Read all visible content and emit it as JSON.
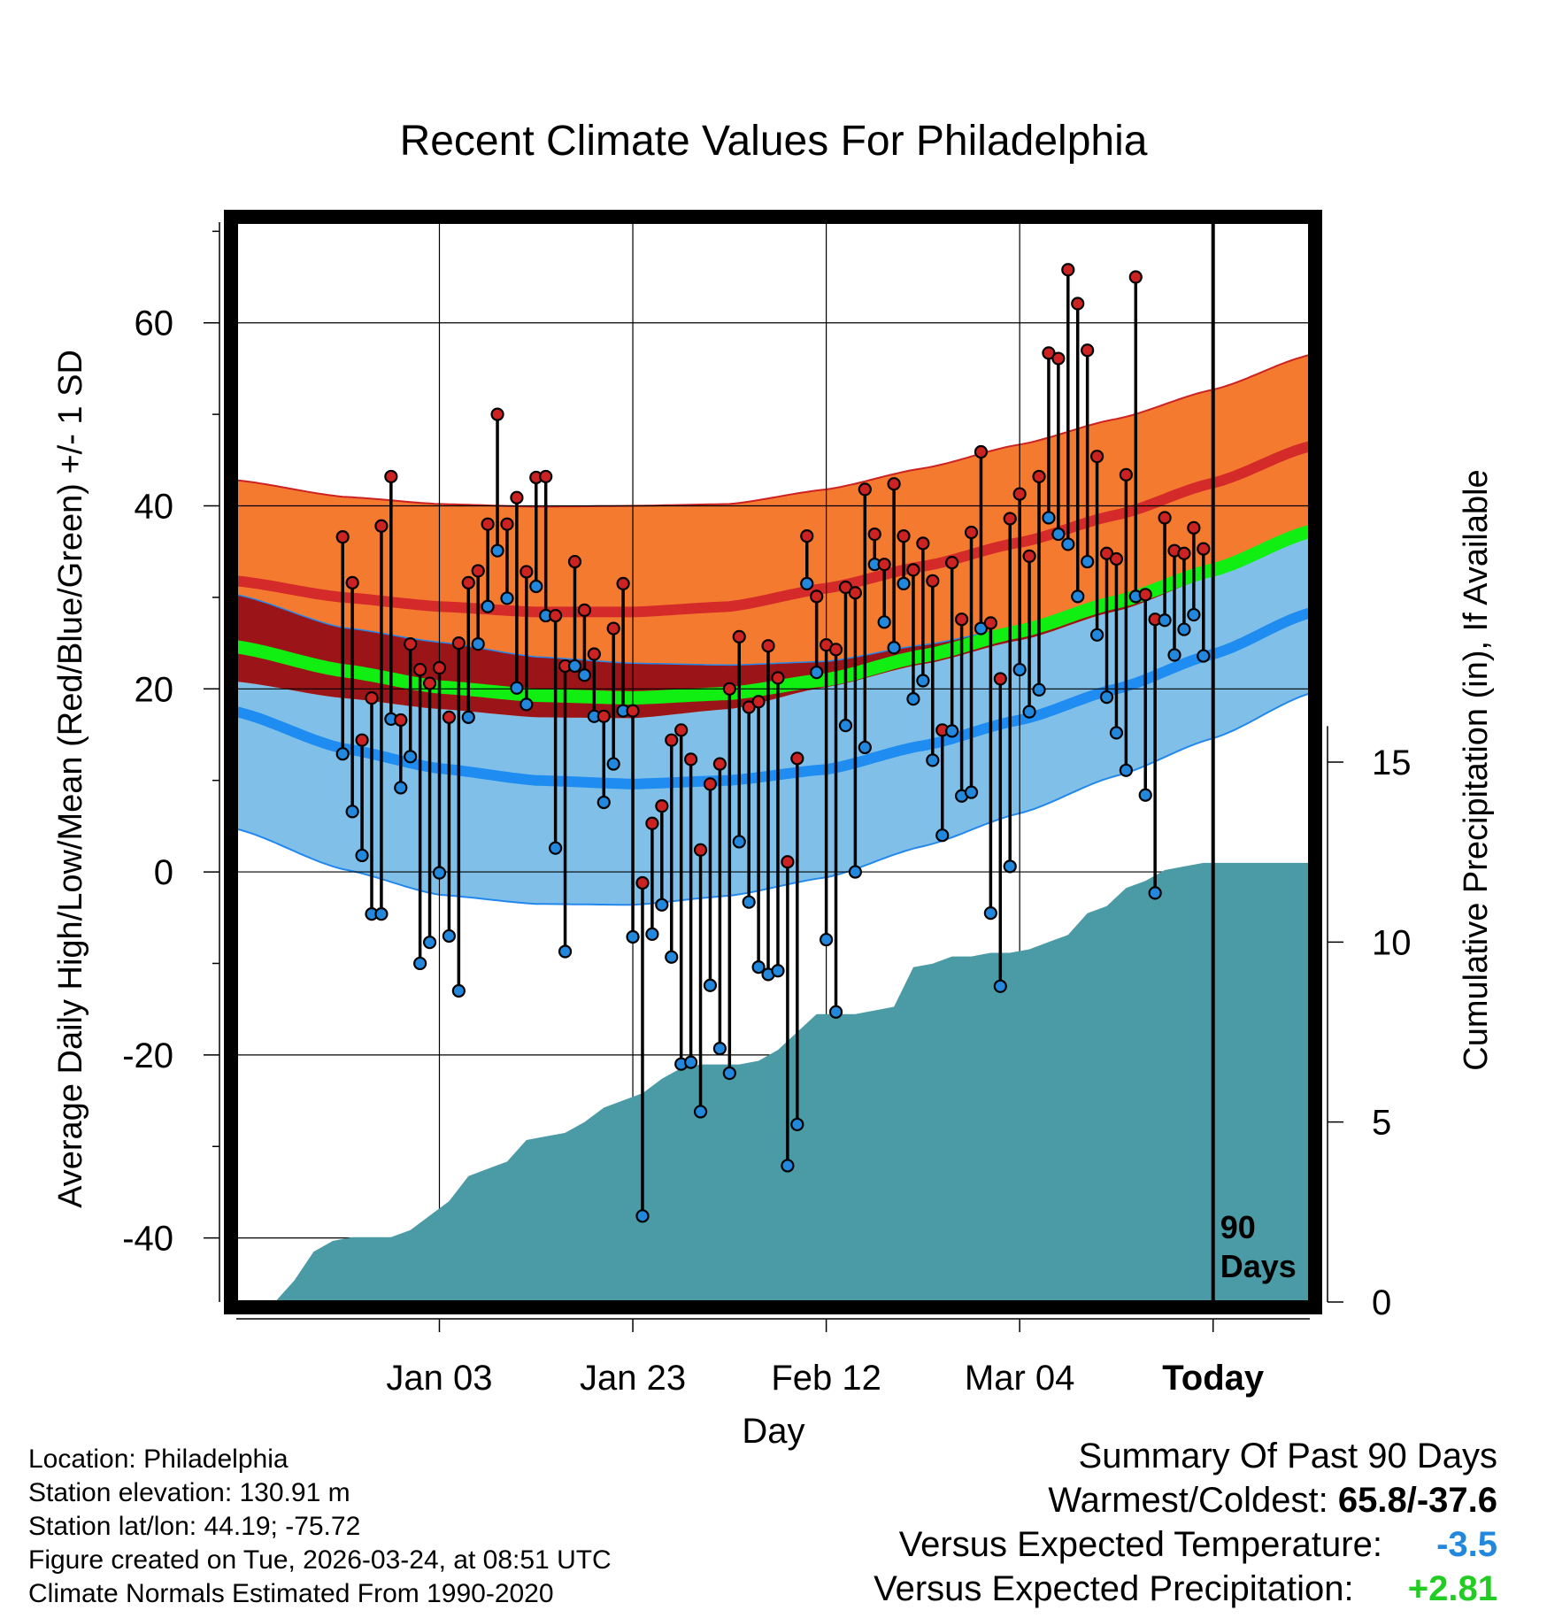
{
  "chart_data": {
    "type": "line",
    "title": "Recent Climate Values For Philadelphia",
    "xlabel": "Day",
    "ylabel": "Average Daily High/Low/Mean (Red/Blue/Green) +/- 1 SD",
    "y2label": "Cumulative Precipitation (in), If Available",
    "ylim": [
      -47,
      71
    ],
    "y2lim": [
      0,
      30
    ],
    "y_ticks": [
      -40,
      -20,
      0,
      20,
      40,
      60
    ],
    "y2_ticks": [
      0,
      5,
      10,
      15
    ],
    "x_range_days": [
      -101,
      10
    ],
    "x_ticks": [
      {
        "day": -80,
        "label": "Jan 03"
      },
      {
        "day": -60,
        "label": "Jan 23"
      },
      {
        "day": -40,
        "label": "Feb 12"
      },
      {
        "day": -20,
        "label": "Mar 04"
      },
      {
        "day": 0,
        "label": "Today"
      }
    ],
    "window_label": "90\nDays",
    "normals": {
      "days": [
        -101,
        -90,
        -80,
        -70,
        -60,
        -50,
        -40,
        -30,
        -20,
        -10,
        0,
        10
      ],
      "high_mean": [
        31.8,
        30.0,
        29.0,
        28.4,
        28.4,
        29.0,
        31.0,
        33.4,
        36.0,
        39.0,
        42.5,
        46.5
      ],
      "high_sd": [
        11.0,
        11.0,
        11.2,
        11.5,
        11.6,
        11.2,
        10.8,
        10.7,
        10.7,
        10.5,
        10.2,
        10.0
      ],
      "low_mean": [
        17.5,
        13.5,
        11.3,
        10.0,
        9.6,
        10.0,
        11.2,
        13.8,
        16.6,
        20.0,
        23.8,
        28.3
      ],
      "low_sd": [
        12.8,
        13.2,
        13.8,
        13.5,
        13.2,
        12.6,
        11.8,
        11.0,
        10.2,
        9.5,
        9.2,
        8.8
      ],
      "mean_mean": [
        24.6,
        22.0,
        20.2,
        19.3,
        19.0,
        19.5,
        21.0,
        23.6,
        26.3,
        29.5,
        33.0,
        37.2
      ]
    },
    "series": [
      {
        "name": "Daily High",
        "color": "#cc2222",
        "values": [
          36.6,
          31.6,
          14.4,
          19.0,
          37.8,
          43.2,
          16.6,
          24.9,
          22.1,
          20.6,
          22.3,
          16.9,
          25.0,
          31.6,
          32.9,
          38.0,
          50.0,
          38.0,
          40.9,
          32.8,
          43.1,
          43.2,
          28.0,
          22.5,
          33.9,
          28.6,
          23.8,
          17.0,
          26.6,
          31.5,
          17.6,
          -1.2,
          5.3,
          7.2,
          14.4,
          15.5,
          12.3,
          2.4,
          9.6,
          11.8,
          20.0,
          25.7,
          18.0,
          18.6,
          24.7,
          21.2,
          1.1,
          12.4,
          36.7,
          30.1,
          24.8,
          24.3,
          31.1,
          30.5,
          41.8,
          36.9,
          33.6,
          42.4,
          36.7,
          33.0,
          35.9,
          31.8,
          15.5,
          33.8,
          27.6,
          37.1,
          45.9,
          27.2,
          21.1,
          38.6,
          41.3,
          34.5,
          43.2,
          56.7,
          56.1,
          65.8,
          62.1,
          57.0,
          45.4,
          34.8,
          34.2,
          43.4,
          65.0,
          30.3,
          27.6,
          38.7,
          35.1,
          34.8,
          37.6,
          35.3
        ]
      },
      {
        "name": "Daily Low",
        "color": "#2288dd",
        "values": [
          12.9,
          6.6,
          1.8,
          -4.6,
          -4.6,
          16.7,
          9.2,
          12.6,
          -10.0,
          -7.7,
          -0.1,
          -7.0,
          -13.0,
          16.9,
          24.9,
          29.0,
          35.1,
          29.9,
          20.1,
          18.3,
          31.2,
          28.0,
          2.6,
          -8.7,
          22.5,
          21.5,
          17.0,
          7.6,
          11.8,
          17.6,
          -7.1,
          -37.6,
          -6.8,
          -3.6,
          -9.3,
          -21.0,
          -20.8,
          -26.2,
          -12.4,
          -19.3,
          -22.0,
          3.3,
          -3.3,
          -10.4,
          -11.2,
          -10.8,
          -32.1,
          -27.6,
          31.5,
          21.8,
          -7.4,
          -15.3,
          16.0,
          0.0,
          13.6,
          33.6,
          27.3,
          24.5,
          31.5,
          18.9,
          20.9,
          12.2,
          4.0,
          15.4,
          8.3,
          8.7,
          26.6,
          -4.5,
          -12.5,
          0.6,
          22.1,
          17.5,
          19.9,
          38.7,
          36.9,
          35.8,
          30.1,
          33.9,
          25.9,
          19.1,
          15.2,
          11.1,
          30.1,
          8.4,
          -2.3,
          27.5,
          23.7,
          26.5,
          28.1,
          23.6
        ]
      }
    ],
    "cumulative_precip": {
      "days": [
        -100,
        -97,
        -95,
        -93,
        -91,
        -89,
        -87,
        -85,
        -83,
        -81,
        -79,
        -77,
        -75,
        -73,
        -71,
        -69,
        -67,
        -65,
        -63,
        -61,
        -59,
        -57,
        -55,
        -53,
        -51,
        -49,
        -47,
        -45,
        -43,
        -41,
        -39,
        -37,
        -35,
        -33,
        -31,
        -29,
        -27,
        -25,
        -23,
        -21,
        -19,
        -17,
        -15,
        -13,
        -11,
        -9,
        -7,
        -5,
        -3,
        -1,
        1,
        3,
        5,
        7,
        9
      ],
      "values": [
        0,
        0,
        0.6,
        1.4,
        1.7,
        1.8,
        1.8,
        1.8,
        2.0,
        2.4,
        2.8,
        3.5,
        3.7,
        3.9,
        4.5,
        4.6,
        4.7,
        5.0,
        5.4,
        5.6,
        5.8,
        6.2,
        6.5,
        6.6,
        6.6,
        6.6,
        6.7,
        7.0,
        7.5,
        8.0,
        8.0,
        8.0,
        8.1,
        8.2,
        9.3,
        9.4,
        9.6,
        9.6,
        9.7,
        9.7,
        9.8,
        10.0,
        10.2,
        10.8,
        11.0,
        11.5,
        11.7,
        12.0,
        12.1,
        12.2,
        12.2,
        12.2,
        12.2,
        12.2,
        12.2
      ]
    }
  },
  "info": {
    "location": "Location: Philadelphia",
    "elevation": "Station elevation: 130.91 m",
    "latlon": "Station lat/lon: 44.19; -75.72",
    "created": "Figure created on Tue, 2026-03-24, at 08:51 UTC",
    "normals": "Climate Normals Estimated From 1990-2020"
  },
  "summary": {
    "title": "Summary Of Past 90 Days",
    "warm_cold_label": "Warmest/Coldest:",
    "warm_cold_value": "65.8/-37.6",
    "temp_label": "Versus Expected Temperature:",
    "temp_value": "-3.5",
    "temp_color": "#2288dd",
    "precip_label": "Versus Expected Precipitation:",
    "precip_value": "+2.81",
    "precip_color": "#22cc22"
  }
}
